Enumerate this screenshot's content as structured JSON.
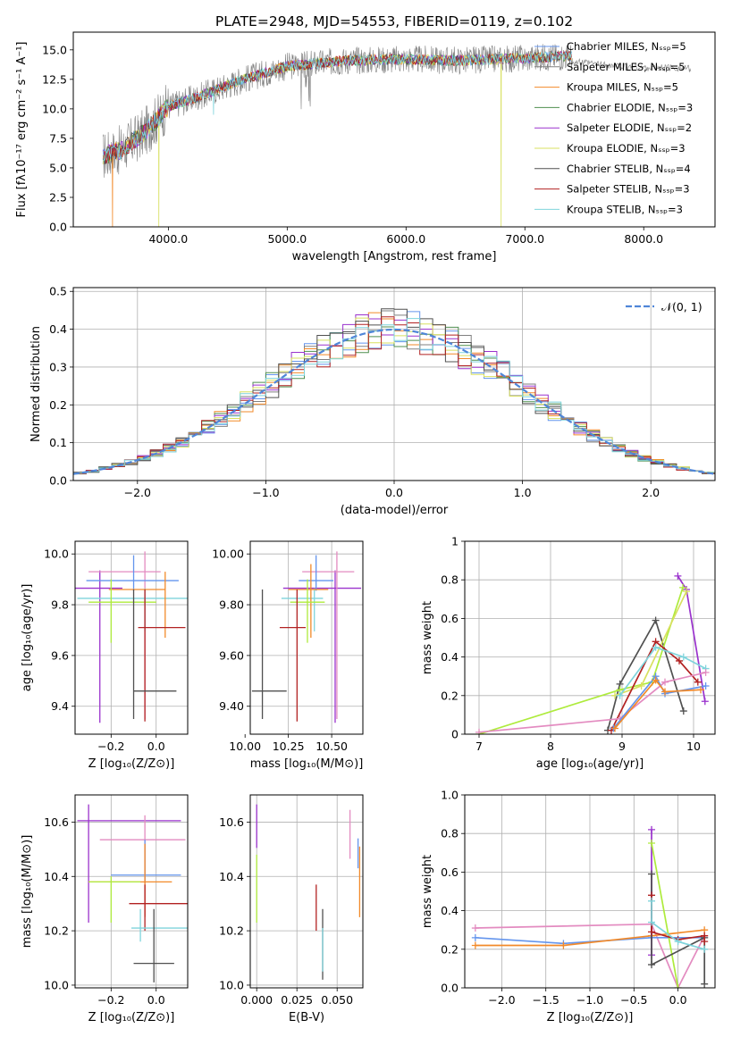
{
  "figure_title": "PLATE=2948, MJD=54553, FIBERID=0119, z=0.102",
  "colors": {
    "chabrier_miles": "#6495ED",
    "salpeter_miles": "#808080",
    "kroupa_miles": "#F28A2A",
    "chabrier_elodie": "#4F8F4F",
    "salpeter_elodie": "#9A32CD",
    "kroupa_elodie": "#D8E060",
    "chabrier_stelib": "#505050",
    "salpeter_stelib": "#B22222",
    "kroupa_stelib": "#7FD4DC",
    "pink": "#E38BC0",
    "lime": "#AEEB3C",
    "gaussian": "#4F86D8",
    "grid": "#b0b0b0"
  },
  "chart_data": [
    {
      "id": "spectrum",
      "type": "line",
      "xlabel": "wavelength [Angstrom, rest frame]",
      "ylabel": "Flux [fλ10⁻¹⁷ erg cm⁻² s⁻¹ A⁻¹]",
      "xlim": [
        3200,
        8600
      ],
      "ylim": [
        0,
        16.5
      ],
      "xticks": [
        4000,
        5000,
        6000,
        7000,
        8000
      ],
      "yticks": [
        0.0,
        2.5,
        5.0,
        7.5,
        10.0,
        12.5,
        15.0
      ],
      "grid": false,
      "legend_position": "upper-right",
      "legend": [
        "Chabrier MILES, Nₛₛₚ=5",
        "Salpeter MILES, Nₛₛₚ=5",
        "Kroupa MILES, Nₛₛₚ=5",
        "Chabrier ELODIE, Nₛₛₚ=3",
        "Salpeter ELODIE, Nₛₛₚ=2",
        "Kroupa ELODIE, Nₛₛₚ=3",
        "Chabrier STELIB, Nₛₛₚ=4",
        "Salpeter STELIB, Nₛₛₚ=3",
        "Kroupa STELIB, Nₛₛₚ=3"
      ],
      "continuum": {
        "x": [
          3450,
          3600,
          3800,
          4000,
          4300,
          4600,
          5000,
          5500,
          6000,
          6500,
          7000,
          7400
        ],
        "y": [
          6.0,
          6.5,
          8.0,
          10.2,
          11.2,
          12.4,
          13.6,
          14.1,
          14.2,
          14.1,
          14.3,
          14.5
        ]
      },
      "salpeter_miles_extension": {
        "x": [
          7400,
          7600,
          7800,
          8000,
          8200,
          8400
        ],
        "y": [
          14.0,
          13.8,
          13.6,
          13.5,
          13.5,
          13.4
        ]
      },
      "dips": [
        {
          "series": "kroupa_miles",
          "x": 3530,
          "y": 0.0
        },
        {
          "series": "kroupa_miles",
          "x": 7420,
          "y": 0.0
        },
        {
          "series": "kroupa_elodie",
          "x": 3920,
          "y": 0.0
        },
        {
          "series": "kroupa_elodie",
          "x": 6800,
          "y": 0.0
        },
        {
          "series": "kroupa_stelib",
          "x": 4380,
          "y": 9.5
        }
      ]
    },
    {
      "id": "residuals",
      "type": "histogram",
      "xlabel": "(data-model)/error",
      "ylabel": "Normed distribution",
      "xlim": [
        -2.5,
        2.5
      ],
      "ylim": [
        0.0,
        0.51
      ],
      "xticks": [
        -2,
        -1,
        0,
        1,
        2
      ],
      "yticks": [
        0.0,
        0.1,
        0.2,
        0.3,
        0.4,
        0.5
      ],
      "grid": true,
      "legend_position": "upper-right",
      "gaussian_label": "𝒩(0, 1)",
      "bin_width": 0.1
    },
    {
      "id": "age_vs_Z",
      "type": "errorbar",
      "xlabel": "Z [log₁₀(Z/Z⊙)]",
      "ylabel": "age  [log₁₀(age/yr)]",
      "xlim": [
        -0.36,
        0.14
      ],
      "ylim": [
        9.29,
        10.05
      ],
      "xticks": [
        -0.2,
        0.0
      ],
      "yticks": [
        9.4,
        9.6,
        9.8,
        10.0
      ],
      "points": [
        {
          "series": "salpeter_elodie",
          "x": -0.25,
          "y": 9.865,
          "xerr": [
            0.35,
            0.1
          ],
          "yerr": [
            0.53,
            0.07
          ]
        },
        {
          "series": "pink",
          "x": -0.05,
          "y": 9.93,
          "xerr": [
            0.25,
            0.07
          ],
          "yerr": [
            0.58,
            0.08
          ]
        },
        {
          "series": "chabrier_miles",
          "x": -0.1,
          "y": 9.895,
          "xerr": [
            0.21,
            0.2
          ],
          "yerr": [
            0.04,
            0.1
          ]
        },
        {
          "series": "kroupa_stelib",
          "x": -0.05,
          "y": 9.825,
          "xerr": [
            0.3,
            0.21
          ],
          "yerr": [
            0.13,
            0.04
          ]
        },
        {
          "series": "kroupa_miles",
          "x": 0.04,
          "y": 9.86,
          "xerr": [
            0.25,
            0.0
          ],
          "yerr": [
            0.19,
            0.07
          ]
        },
        {
          "series": "lime",
          "x": -0.2,
          "y": 9.81,
          "xerr": [
            0.1,
            0.2
          ],
          "yerr": [
            0.16,
            0.09
          ]
        },
        {
          "series": "salpeter_stelib",
          "x": -0.05,
          "y": 9.71,
          "xerr": [
            0.03,
            0.18
          ],
          "yerr": [
            0.37,
            0.15
          ]
        },
        {
          "series": "chabrier_stelib",
          "x": -0.1,
          "y": 9.46,
          "xerr": [
            0.0,
            0.19
          ],
          "yerr": [
            0.11,
            0.4
          ]
        }
      ]
    },
    {
      "id": "age_vs_mass",
      "type": "errorbar",
      "xlabel": "mass [log₁₀(M/M⊙)]",
      "ylabel": "",
      "xlim": [
        10.03,
        10.68
      ],
      "ylim": [
        9.29,
        10.05
      ],
      "xticks": [
        10.0,
        10.25,
        10.5
      ],
      "yticks": [
        9.4,
        9.6,
        9.8,
        10.0
      ],
      "points": [
        {
          "series": "salpeter_elodie",
          "x": 10.52,
          "y": 9.865,
          "xerr": [
            0.3,
            0.15
          ],
          "yerr": [
            0.53,
            0.07
          ]
        },
        {
          "series": "pink",
          "x": 10.53,
          "y": 9.93,
          "xerr": [
            0.2,
            0.1
          ],
          "yerr": [
            0.58,
            0.08
          ]
        },
        {
          "series": "chabrier_miles",
          "x": 10.41,
          "y": 9.895,
          "xerr": [
            0.1,
            0.1
          ],
          "yerr": [
            0.04,
            0.1
          ]
        },
        {
          "series": "kroupa_stelib",
          "x": 10.4,
          "y": 9.825,
          "xerr": [
            0.19,
            0.05
          ],
          "yerr": [
            0.13,
            0.04
          ]
        },
        {
          "series": "kroupa_miles",
          "x": 10.38,
          "y": 9.86,
          "xerr": [
            0.13,
            0.1
          ],
          "yerr": [
            0.19,
            0.1
          ]
        },
        {
          "series": "lime",
          "x": 10.36,
          "y": 9.81,
          "xerr": [
            0.1,
            0.1
          ],
          "yerr": [
            0.16,
            0.09
          ]
        },
        {
          "series": "salpeter_stelib",
          "x": 10.3,
          "y": 9.71,
          "xerr": [
            0.1,
            0.05
          ],
          "yerr": [
            0.37,
            0.15
          ]
        },
        {
          "series": "chabrier_stelib",
          "x": 10.1,
          "y": 9.46,
          "xerr": [
            0.06,
            0.14
          ],
          "yerr": [
            0.11,
            0.4
          ]
        }
      ]
    },
    {
      "id": "massweight_vs_age",
      "type": "line",
      "xlabel": "age  [log₁₀(age/yr)]",
      "ylabel": "mass weight",
      "xlim": [
        6.8,
        10.3
      ],
      "ylim": [
        0.0,
        1.0
      ],
      "xticks": [
        7,
        8,
        9,
        10
      ],
      "yticks": [
        0.0,
        0.2,
        0.4,
        0.6,
        0.8,
        1.0
      ],
      "grid": true,
      "series": [
        {
          "key": "chabrier_stelib",
          "x": [
            8.8,
            8.97,
            9.47,
            9.86
          ],
          "y": [
            0.02,
            0.26,
            0.59,
            0.12
          ]
        },
        {
          "key": "salpeter_elodie",
          "x": [
            9.78,
            9.9,
            10.16
          ],
          "y": [
            0.82,
            0.75,
            0.17
          ]
        },
        {
          "key": "lime",
          "x": [
            7.0,
            8.97,
            9.42,
            9.85
          ],
          "y": [
            0.0,
            0.23,
            0.27,
            0.76
          ]
        },
        {
          "key": "kroupa_elodie",
          "x": [
            8.9,
            9.27,
            9.9
          ],
          "y": [
            0.2,
            0.25,
            0.74
          ]
        },
        {
          "key": "salpeter_stelib",
          "x": [
            8.85,
            9.47,
            9.8,
            10.06
          ],
          "y": [
            0.02,
            0.48,
            0.38,
            0.27
          ]
        },
        {
          "key": "kroupa_stelib",
          "x": [
            8.97,
            9.47,
            9.86,
            10.17
          ],
          "y": [
            0.2,
            0.45,
            0.4,
            0.34
          ]
        },
        {
          "key": "pink",
          "x": [
            7.0,
            8.97,
            9.6,
            10.17
          ],
          "y": [
            0.01,
            0.08,
            0.27,
            0.32
          ]
        },
        {
          "key": "chabrier_miles",
          "x": [
            8.88,
            9.47,
            9.6,
            10.17
          ],
          "y": [
            0.03,
            0.3,
            0.21,
            0.25
          ]
        },
        {
          "key": "kroupa_miles",
          "x": [
            8.9,
            9.47,
            9.6,
            10.1
          ],
          "y": [
            0.03,
            0.28,
            0.22,
            0.23
          ]
        }
      ]
    },
    {
      "id": "mass_vs_Z",
      "type": "errorbar",
      "xlabel": "Z [log₁₀(Z/Z⊙)]",
      "ylabel": "mass [log₁₀(M/M⊙)]",
      "xlim": [
        -0.36,
        0.14
      ],
      "ylim": [
        9.99,
        10.7
      ],
      "xticks": [
        -0.2,
        0.0
      ],
      "yticks": [
        10.0,
        10.2,
        10.4,
        10.6
      ],
      "points": [
        {
          "series": "salpeter_elodie",
          "x": -0.3,
          "y": 10.605,
          "xerr": [
            0.05,
            0.41
          ],
          "yerr": [
            0.375,
            0.06
          ]
        },
        {
          "series": "pink",
          "x": -0.05,
          "y": 10.535,
          "xerr": [
            0.2,
            0.18
          ],
          "yerr": [
            0.28,
            0.09
          ]
        },
        {
          "series": "chabrier_miles",
          "x": -0.05,
          "y": 10.405,
          "xerr": [
            0.15,
            0.16
          ],
          "yerr": [
            0.03,
            0.13
          ]
        },
        {
          "series": "kroupa_miles",
          "x": -0.05,
          "y": 10.38,
          "xerr": [
            0.25,
            0.12
          ],
          "yerr": [
            0.13,
            0.14
          ]
        },
        {
          "series": "lime",
          "x": -0.2,
          "y": 10.38,
          "xerr": [
            0.1,
            0.13
          ],
          "yerr": [
            0.15,
            0.02
          ]
        },
        {
          "series": "salpeter_stelib",
          "x": -0.05,
          "y": 10.3,
          "xerr": [
            0.07,
            0.21
          ],
          "yerr": [
            0.1,
            0.07
          ]
        },
        {
          "series": "kroupa_stelib",
          "x": -0.07,
          "y": 10.21,
          "xerr": [
            0.04,
            0.22
          ],
          "yerr": [
            0.05,
            0.07
          ]
        },
        {
          "series": "chabrier_stelib",
          "x": -0.01,
          "y": 10.08,
          "xerr": [
            0.09,
            0.09
          ],
          "yerr": [
            0.07,
            0.2
          ]
        }
      ]
    },
    {
      "id": "mass_vs_ebv",
      "type": "errorbar",
      "xlabel": "E(B-V)",
      "ylabel": "",
      "xlim": [
        -0.004,
        0.066
      ],
      "ylim": [
        9.99,
        10.7
      ],
      "xticks": [
        0.0,
        0.025,
        0.05
      ],
      "yticks": [
        10.0,
        10.2,
        10.4,
        10.6
      ],
      "points": [
        {
          "series": "salpeter_elodie",
          "x": 0.0,
          "y": 10.605,
          "xerr": [
            0,
            0
          ],
          "yerr": [
            0.1,
            0.06
          ]
        },
        {
          "series": "lime",
          "x": 0.0,
          "y": 10.38,
          "xerr": [
            0,
            0
          ],
          "yerr": [
            0.15,
            0.1
          ]
        },
        {
          "series": "salpeter_stelib",
          "x": 0.037,
          "y": 10.3,
          "xerr": [
            0,
            0
          ],
          "yerr": [
            0.1,
            0.07
          ]
        },
        {
          "series": "chabrier_stelib",
          "x": 0.041,
          "y": 10.2,
          "xerr": [
            0,
            0
          ],
          "yerr": [
            0.18,
            0.08
          ]
        },
        {
          "series": "kroupa_stelib",
          "x": 0.041,
          "y": 10.15,
          "xerr": [
            0,
            0
          ],
          "yerr": [
            0.1,
            0.06
          ]
        },
        {
          "series": "pink",
          "x": 0.058,
          "y": 10.535,
          "xerr": [
            0,
            0
          ],
          "yerr": [
            0.07,
            0.11
          ]
        },
        {
          "series": "chabrier_miles",
          "x": 0.063,
          "y": 10.5,
          "xerr": [
            0,
            0
          ],
          "yerr": [
            0.07,
            0.04
          ]
        },
        {
          "series": "kroupa_miles",
          "x": 0.064,
          "y": 10.38,
          "xerr": [
            0,
            0
          ],
          "yerr": [
            0.13,
            0.13
          ]
        }
      ]
    },
    {
      "id": "massweight_vs_Z",
      "type": "line",
      "xlabel": "Z [log₁₀(Z/Z⊙)]",
      "ylabel": "mass weight",
      "xlim": [
        -2.42,
        0.42
      ],
      "ylim": [
        0.0,
        1.0
      ],
      "xticks": [
        -2.0,
        -1.5,
        -1.0,
        -0.5,
        0.0
      ],
      "yticks": [
        0.0,
        0.2,
        0.4,
        0.6,
        0.8,
        1.0
      ],
      "grid": true,
      "series": [
        {
          "key": "pink",
          "x": [
            -2.3,
            -0.3,
            0.0,
            0.3
          ],
          "y": [
            0.31,
            0.33,
            0.0,
            0.27
          ]
        },
        {
          "key": "chabrier_miles",
          "x": [
            -2.3,
            -1.3,
            -0.3,
            0.3
          ],
          "y": [
            0.26,
            0.23,
            0.26,
            0.26
          ]
        },
        {
          "key": "kroupa_miles",
          "x": [
            -2.3,
            -1.3,
            -0.3,
            0.3
          ],
          "y": [
            0.22,
            0.22,
            0.27,
            0.3
          ]
        },
        {
          "key": "salpeter_elodie",
          "x": [
            -0.3,
            -0.3
          ],
          "y": [
            0.17,
            0.82
          ]
        },
        {
          "key": "lime",
          "x": [
            -0.3,
            0.0
          ],
          "y": [
            0.75,
            0.0
          ]
        },
        {
          "key": "chabrier_stelib",
          "x": [
            -0.3,
            -0.3,
            0.3,
            0.3
          ],
          "y": [
            0.59,
            0.12,
            0.26,
            0.02
          ]
        },
        {
          "key": "salpeter_stelib",
          "x": [
            -0.3,
            -0.3,
            0.0,
            0.3,
            0.3
          ],
          "y": [
            0.48,
            0.29,
            0.25,
            0.27,
            0.24
          ]
        },
        {
          "key": "kroupa_stelib",
          "x": [
            -0.3,
            -0.3,
            0.0,
            0.3
          ],
          "y": [
            0.45,
            0.34,
            0.24,
            0.2
          ]
        }
      ]
    }
  ]
}
